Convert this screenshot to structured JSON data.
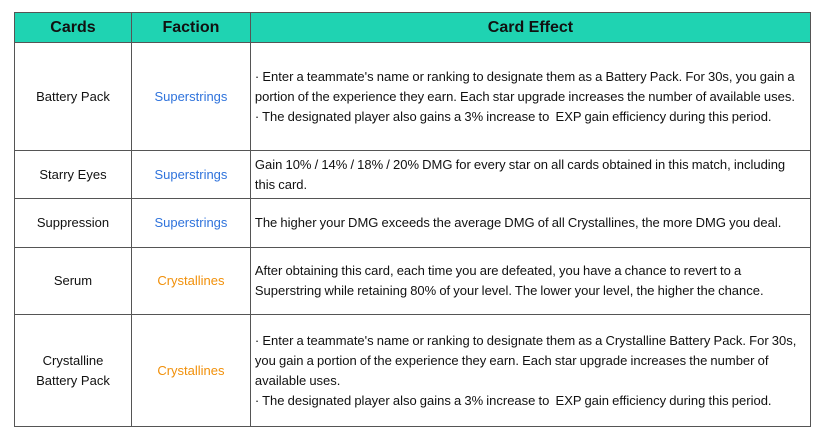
{
  "table": {
    "header": [
      "Cards",
      "Faction",
      "Card Effect"
    ],
    "rows": [
      {
        "card": "Battery Pack",
        "faction": "Superstrings",
        "effect": [
          "· Enter a teammate's name or ranking to designate them as a Battery Pack. For 30s, you gain a portion of the experience they earn. Each star upgrade increases the number of available uses.",
          "· The designated player also gains a 3% increase to  EXP gain efficiency during this period."
        ]
      },
      {
        "card": "Starry Eyes",
        "faction": "Superstrings",
        "effect": [
          "Gain 10% / 14% / 18% / 20% DMG for every star on all cards obtained in this match, including this card."
        ]
      },
      {
        "card": "Suppression",
        "faction": "Superstrings",
        "effect": [
          "The higher your DMG exceeds the average DMG of all Crystallines, the more DMG you deal."
        ]
      },
      {
        "card": "Serum",
        "faction": "Crystallines",
        "effect": [
          "After obtaining this card, each time you are defeated, you have a chance to revert to a Superstring while retaining 80% of your level. The lower your level, the higher the chance."
        ]
      },
      {
        "card": "Crystalline Battery Pack",
        "faction": "Crystallines",
        "effect": [
          "· Enter a teammate's name or ranking to designate them as a Crystalline Battery Pack. For 30s, you gain a portion of the experience they earn. Each star upgrade increases the number of available uses.",
          "· The designated player also gains a 3% increase to  EXP gain efficiency during this period."
        ]
      }
    ]
  }
}
